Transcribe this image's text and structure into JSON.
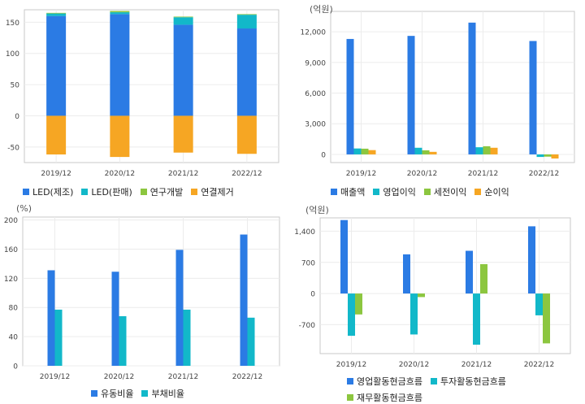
{
  "colors": {
    "blue": "#2B7BE4",
    "cyan": "#12B8C9",
    "green": "#8CC63F",
    "orange": "#F6A623"
  },
  "chart_data": [
    {
      "id": "tl",
      "type": "bar",
      "stacked": true,
      "unit_label": "",
      "categories": [
        "2019/12",
        "2020/12",
        "2021/12",
        "2022/12"
      ],
      "ylim": [
        -75,
        170
      ],
      "yticks": [
        -50,
        0,
        50,
        100,
        150
      ],
      "yticklabels": [
        "-50",
        "0",
        "50",
        "100",
        "150"
      ],
      "series": [
        {
          "name": "LED(제조)",
          "color": "#2B7BE4",
          "values": [
            160,
            163,
            146,
            140
          ]
        },
        {
          "name": "LED(판매)",
          "color": "#12B8C9",
          "values": [
            4,
            3,
            12,
            22
          ]
        },
        {
          "name": "연구개발",
          "color": "#8CC63F",
          "values": [
            1,
            2,
            1,
            1
          ]
        },
        {
          "name": "연결제거",
          "color": "#F6A623",
          "values": [
            -62,
            -66,
            -59,
            -61
          ]
        }
      ]
    },
    {
      "id": "tr",
      "type": "bar",
      "stacked": false,
      "unit_label": "(억원)",
      "categories": [
        "2019/12",
        "2020/12",
        "2021/12",
        "2022/12"
      ],
      "ylim": [
        -800,
        14000
      ],
      "yticks": [
        0,
        3000,
        6000,
        9000,
        12000
      ],
      "yticklabels": [
        "0",
        "3,000",
        "6,000",
        "9,000",
        "12,000"
      ],
      "series": [
        {
          "name": "매출액",
          "color": "#2B7BE4",
          "values": [
            11300,
            11600,
            12900,
            11100
          ]
        },
        {
          "name": "영업이익",
          "color": "#12B8C9",
          "values": [
            580,
            650,
            700,
            -250
          ]
        },
        {
          "name": "세전이익",
          "color": "#8CC63F",
          "values": [
            560,
            400,
            800,
            -220
          ]
        },
        {
          "name": "순이익",
          "color": "#F6A623",
          "values": [
            420,
            250,
            650,
            -400
          ]
        }
      ]
    },
    {
      "id": "bl",
      "type": "bar",
      "stacked": false,
      "unit_label": "(%)",
      "categories": [
        "2019/12",
        "2020/12",
        "2021/12",
        "2022/12"
      ],
      "ylim": [
        0,
        204
      ],
      "yticks": [
        0,
        40,
        80,
        120,
        160,
        200
      ],
      "yticklabels": [
        "0",
        "40",
        "80",
        "120",
        "160",
        "200"
      ],
      "series": [
        {
          "name": "유동비율",
          "color": "#2B7BE4",
          "values": [
            131,
            129,
            159,
            180
          ]
        },
        {
          "name": "부채비율",
          "color": "#12B8C9",
          "values": [
            77,
            68,
            77,
            66
          ]
        }
      ]
    },
    {
      "id": "br",
      "type": "bar",
      "stacked": false,
      "unit_label": "(억원)",
      "categories": [
        "2019/12",
        "2020/12",
        "2021/12",
        "2022/12"
      ],
      "ylim": [
        -1350,
        1700
      ],
      "yticks": [
        -700,
        0,
        700,
        1400
      ],
      "yticklabels": [
        "-700",
        "0",
        "700",
        "1,400"
      ],
      "series": [
        {
          "name": "영업활동현금흐름",
          "color": "#2B7BE4",
          "values": [
            1650,
            880,
            960,
            1510
          ]
        },
        {
          "name": "투자활동현금흐름",
          "color": "#12B8C9",
          "values": [
            -950,
            -920,
            -1150,
            -490
          ]
        },
        {
          "name": "재무활동현금흐름",
          "color": "#8CC63F",
          "values": [
            -470,
            -80,
            660,
            -1120
          ]
        }
      ]
    }
  ]
}
